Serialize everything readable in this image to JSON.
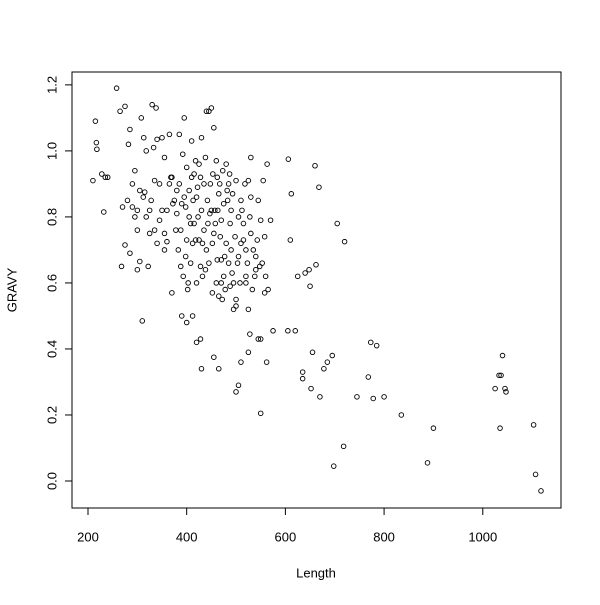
{
  "chart_data": {
    "type": "scatter",
    "x_label": "Length",
    "y_label": "GRAVY",
    "xlim": [
      167.6,
      1158.5
    ],
    "ylim": [
      -0.0818,
      1.239
    ],
    "xticks": [
      200,
      400,
      600,
      800,
      1000
    ],
    "yticks": [
      {
        "value": 0,
        "label": "0.0"
      },
      0.2,
      0.4,
      0.6,
      0.8,
      {
        "value": 1,
        "label": "1.0"
      },
      1.2
    ],
    "grid": false,
    "color": "#000000",
    "series": [
      {
        "x": [
          1033,
          1037,
          1040,
          1045,
          1047,
          1025,
          1035,
          1103,
          1107,
          1118,
          900,
          888,
          835,
          800,
          785,
          773,
          778,
          768,
          745,
          718,
          698,
          720,
          705,
          695,
          685,
          678,
          670,
          668,
          660,
          662,
          655,
          648,
          652,
          640,
          635,
          635,
          650,
          625,
          620,
          605,
          610,
          612,
          606,
          575,
          570,
          563,
          565,
          562,
          558,
          550,
          545,
          550,
          528,
          525,
          530,
          505,
          500,
          510,
          465,
          455,
          430,
          420,
          428,
          310,
          390,
          400,
          210,
          215,
          217,
          218,
          228,
          235,
          232,
          240,
          258,
          265,
          275,
          270,
          268,
          275,
          285,
          280,
          290,
          290,
          285,
          282,
          295,
          300,
          300,
          305,
          308,
          313,
          315,
          318,
          322,
          325,
          328,
          330,
          333,
          338,
          340,
          345,
          350,
          355,
          360,
          365,
          368,
          370,
          375,
          380,
          385,
          388,
          392,
          395,
          398,
          400,
          402,
          405,
          410,
          412,
          415,
          420,
          425,
          430,
          435,
          440,
          445,
          450,
          455,
          460,
          465,
          470,
          475,
          480,
          485,
          490,
          495,
          500,
          505,
          510,
          515,
          520,
          525,
          530,
          535,
          540,
          545,
          550,
          555,
          560,
          380,
          385,
          390,
          395,
          400,
          405,
          410,
          415,
          420,
          425,
          430,
          435,
          440,
          445,
          450,
          455,
          460,
          465,
          470,
          475,
          480,
          485,
          490,
          495,
          500,
          505,
          510,
          515,
          520,
          525,
          418,
          422,
          428,
          438,
          442,
          448,
          452,
          458,
          462,
          468,
          472,
          478,
          482,
          488,
          492,
          498,
          408,
          412,
          432,
          438,
          452,
          462,
          470,
          488,
          500,
          508,
          345,
          350,
          355,
          360,
          365,
          370,
          340,
          335,
          325,
          318,
          312,
          305,
          300,
          295,
          335,
          355,
          372,
          378,
          383,
          388,
          393,
          398,
          403,
          408,
          413,
          418,
          423,
          428,
          432,
          443,
          447,
          453,
          457,
          463,
          467,
          473,
          477,
          483,
          487,
          493,
          503,
          512,
          518,
          523,
          528,
          533,
          538,
          543,
          548,
          553,
          558,
          540,
          520,
          530
        ],
        "values": [
          0.32,
          0.32,
          0.38,
          0.28,
          0.27,
          0.28,
          0.16,
          0.17,
          0.02,
          -0.03,
          0.16,
          0.055,
          0.2,
          0.255,
          0.41,
          0.42,
          0.25,
          0.315,
          0.255,
          0.105,
          0.045,
          0.725,
          0.78,
          0.38,
          0.36,
          0.34,
          0.255,
          0.89,
          0.955,
          0.655,
          0.39,
          0.64,
          0.28,
          0.63,
          0.33,
          0.31,
          0.59,
          0.62,
          0.455,
          0.455,
          0.73,
          0.87,
          0.975,
          0.455,
          0.79,
          0.96,
          0.58,
          0.36,
          0.57,
          0.43,
          0.43,
          0.205,
          0.445,
          0.39,
          0.98,
          0.29,
          0.27,
          0.36,
          0.34,
          0.375,
          0.34,
          0.42,
          0.43,
          0.485,
          0.5,
          0.48,
          0.91,
          1.09,
          1.025,
          1.005,
          0.93,
          0.92,
          0.815,
          0.92,
          1.19,
          1.12,
          1.135,
          0.83,
          0.65,
          0.715,
          0.69,
          0.85,
          0.83,
          0.9,
          1.065,
          1.02,
          0.94,
          0.82,
          0.64,
          0.665,
          1.1,
          1.04,
          0.875,
          1.0,
          0.65,
          0.82,
          0.85,
          1.14,
          1.01,
          1.13,
          1.035,
          0.9,
          1.04,
          0.7,
          0.725,
          1.05,
          0.92,
          0.57,
          0.85,
          0.81,
          1.05,
          0.65,
          0.99,
          1.1,
          0.83,
          0.73,
          0.58,
          0.8,
          1.03,
          0.72,
          0.93,
          0.6,
          0.73,
          1.04,
          0.9,
          1.12,
          1.12,
          1.13,
          1.07,
          0.97,
          0.87,
          0.67,
          0.62,
          0.96,
          0.9,
          0.7,
          0.52,
          0.91,
          0.8,
          0.85,
          0.73,
          0.62,
          0.91,
          0.75,
          0.7,
          0.68,
          0.85,
          0.79,
          0.91,
          0.62,
          0.88,
          0.9,
          0.84,
          0.86,
          0.95,
          0.88,
          0.92,
          0.78,
          0.86,
          0.96,
          0.82,
          0.76,
          0.7,
          0.66,
          0.82,
          0.75,
          0.6,
          0.56,
          0.79,
          0.84,
          0.72,
          0.66,
          0.82,
          0.6,
          0.55,
          0.68,
          0.72,
          0.78,
          0.7,
          0.52,
          0.97,
          0.89,
          0.92,
          0.98,
          0.85,
          0.9,
          0.72,
          0.78,
          0.92,
          0.74,
          0.55,
          0.58,
          0.88,
          0.78,
          0.63,
          0.74,
          0.66,
          0.5,
          0.62,
          0.64,
          0.57,
          0.67,
          0.6,
          0.59,
          0.53,
          0.6,
          0.79,
          0.82,
          0.75,
          0.82,
          0.9,
          0.92,
          0.72,
          0.76,
          0.75,
          0.8,
          0.86,
          0.88,
          0.76,
          0.8,
          0.91,
          0.98,
          0.84,
          0.76,
          0.7,
          0.76,
          0.62,
          0.68,
          0.6,
          0.78,
          0.85,
          0.73,
          0.8,
          0.65,
          0.72,
          0.78,
          0.81,
          0.93,
          0.82,
          0.82,
          0.9,
          0.94,
          0.68,
          0.85,
          0.93,
          0.87,
          0.66,
          0.82,
          0.9,
          0.66,
          0.8,
          0.58,
          0.62,
          0.73,
          0.65,
          0.66,
          0.74,
          0.64,
          0.6,
          0.86
        ]
      }
    ]
  }
}
